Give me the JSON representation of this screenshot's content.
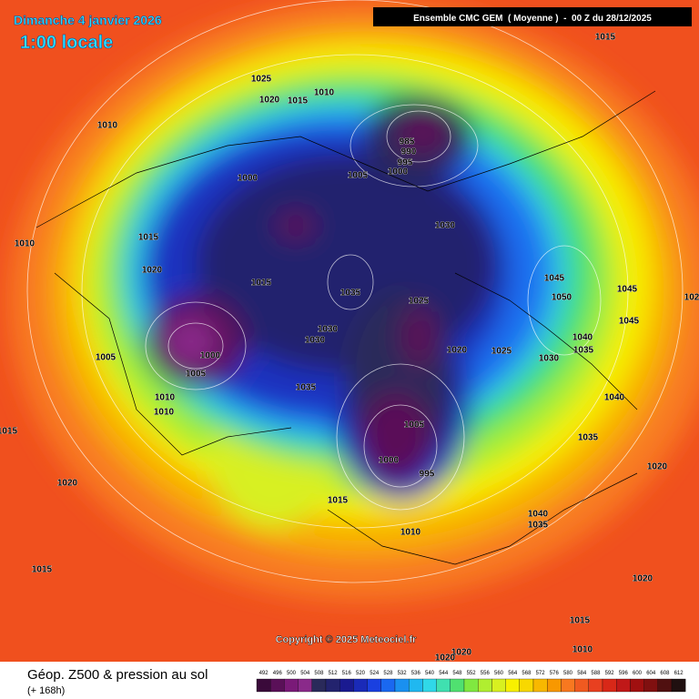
{
  "header": {
    "date": "Dimanche 4 janvier 2026",
    "time": "1:00 locale",
    "model": "Ensemble CMC GEM  ( Moyenne )  -  00 Z du 28/12/2025"
  },
  "map": {
    "copyright": "Copyright © 2025 Meteociel.fr",
    "pressure_labels": [
      1015,
      1025,
      1020,
      1015,
      1010,
      1010,
      985,
      990,
      995,
      1000,
      1005,
      1000,
      1030,
      1010,
      1015,
      1020,
      1015,
      1035,
      1025,
      1045,
      1050,
      1045,
      1045,
      1030,
      1030,
      1000,
      1005,
      1020,
      1025,
      1040,
      1035,
      1030,
      1005,
      1035,
      1010,
      1010,
      1040,
      1005,
      1015,
      1035,
      1000,
      995,
      1020,
      1020,
      1015,
      1040,
      1035,
      1010,
      1015,
      1020,
      1015,
      1010,
      1020,
      1020,
      102
    ]
  },
  "footer": {
    "title": "Géop. Z500 & pression au sol",
    "subtitle": "(+ 168h)",
    "scale": {
      "labels": [
        492,
        496,
        500,
        504,
        508,
        512,
        516,
        520,
        524,
        528,
        532,
        536,
        540,
        544,
        548,
        552,
        556,
        560,
        564,
        568,
        572,
        576,
        580,
        584,
        588,
        592,
        596,
        600,
        604,
        608,
        612
      ],
      "colors": [
        "#3a0a3a",
        "#5a1058",
        "#7a1a78",
        "#8a2a8a",
        "#2a2a5a",
        "#23236e",
        "#1a1a90",
        "#1a2ab8",
        "#1a40e0",
        "#1a68f0",
        "#1a90f0",
        "#20b8f0",
        "#30d8e8",
        "#40e0b0",
        "#50e070",
        "#80e840",
        "#b0ee30",
        "#d8f020",
        "#f8f000",
        "#f8d800",
        "#f8b800",
        "#f89800",
        "#f87820",
        "#f05a20",
        "#e84020",
        "#d82818",
        "#c01818",
        "#a01010",
        "#801010",
        "#501010",
        "#201010"
      ]
    }
  }
}
